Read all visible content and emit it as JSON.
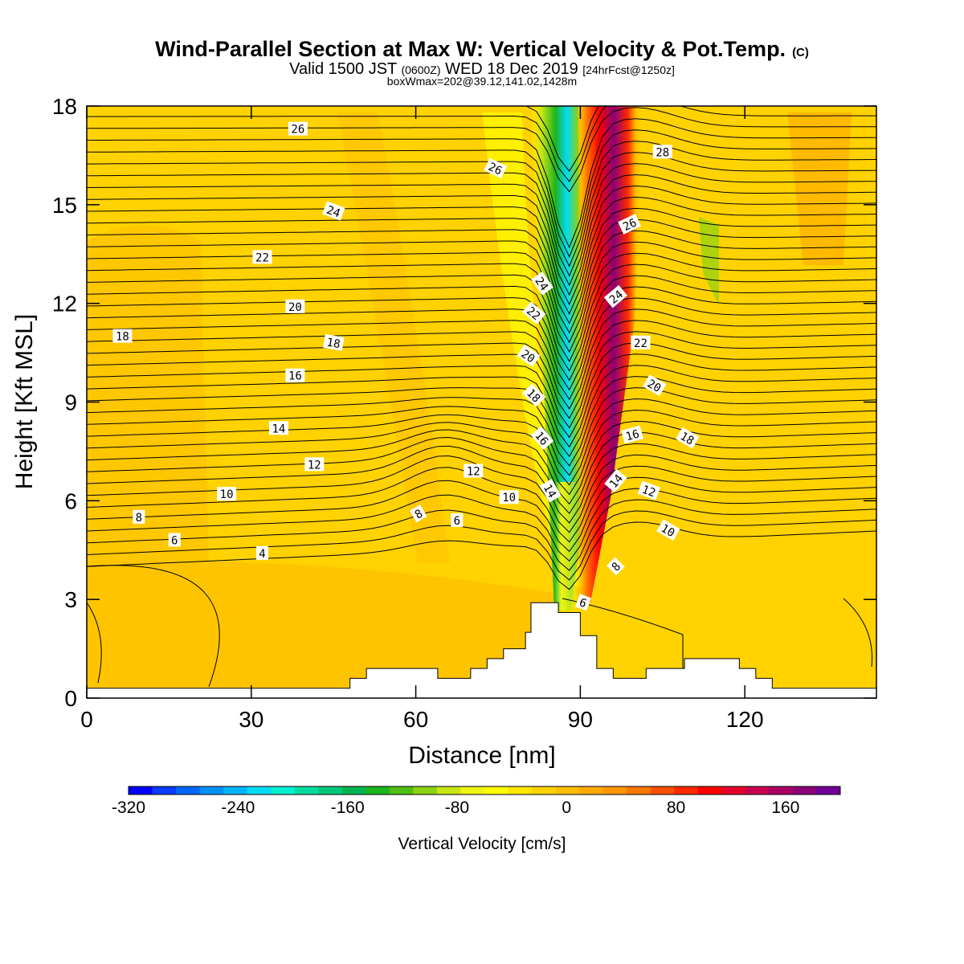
{
  "chart_data": {
    "type": "heatmap",
    "title": "Wind-Parallel Section at Max W: Vertical Velocity & Pot.Temp.",
    "title_mark": "(C)",
    "subtitle_parts": [
      "Valid 1500 JST ",
      "(0600Z)",
      " WED 18 Dec 2019 ",
      "[24hrFcst@1250z]"
    ],
    "subtitle2": "boxWmax=202@39.12,141.02,1428m",
    "xlabel": "Distance [nm]",
    "ylabel": "Height [Kft MSL]",
    "xlim": [
      0,
      144
    ],
    "ylim": [
      0,
      18
    ],
    "xticks": [
      0,
      30,
      60,
      90,
      120
    ],
    "yticks": [
      0,
      3,
      6,
      9,
      12,
      15,
      18
    ],
    "grid": false,
    "colorbar": {
      "label": "Vertical Velocity [cm/s]",
      "min": -320,
      "max": 200,
      "step": 20,
      "ticks": [
        "-320",
        "-240",
        "-160",
        "-80",
        "0",
        "80",
        "160"
      ],
      "tick_values": [
        -320,
        -240,
        -160,
        -80,
        0,
        80,
        160
      ],
      "colors": [
        "#0000ff",
        "#0a3cff",
        "#0066ff",
        "#0090ff",
        "#00b4ff",
        "#00dcf5",
        "#00f0d2",
        "#00dca0",
        "#00c878",
        "#00b450",
        "#1eb41e",
        "#50be14",
        "#8cd214",
        "#c8e614",
        "#f0f514",
        "#ffff00",
        "#ffe600",
        "#ffd200",
        "#ffbe00",
        "#ffaa00",
        "#ff9600",
        "#ff7800",
        "#ff5000",
        "#ff2800",
        "#ff0000",
        "#e6002d",
        "#c80050",
        "#aa0064",
        "#8c0078",
        "#6e0096"
      ]
    },
    "contour_labels": [
      {
        "text": "26",
        "x": 38.5,
        "y": 17.3,
        "angle": 0
      },
      {
        "text": "24",
        "x": 45.0,
        "y": 14.8,
        "angle": 20
      },
      {
        "text": "22",
        "x": 32.0,
        "y": 13.4,
        "angle": 0
      },
      {
        "text": "20",
        "x": 38.0,
        "y": 11.9,
        "angle": 0
      },
      {
        "text": "18",
        "x": 6.5,
        "y": 11.0,
        "angle": 0
      },
      {
        "text": "18",
        "x": 45.0,
        "y": 10.8,
        "angle": 10
      },
      {
        "text": "16",
        "x": 38.0,
        "y": 9.8,
        "angle": 0
      },
      {
        "text": "14",
        "x": 35.0,
        "y": 8.2,
        "angle": 0
      },
      {
        "text": "12",
        "x": 41.5,
        "y": 7.1,
        "angle": 0
      },
      {
        "text": "10",
        "x": 25.5,
        "y": 6.2,
        "angle": 0
      },
      {
        "text": "8",
        "x": 9.5,
        "y": 5.5,
        "angle": 0
      },
      {
        "text": "6",
        "x": 16.0,
        "y": 4.8,
        "angle": 0
      },
      {
        "text": "4",
        "x": 32.0,
        "y": 4.4,
        "angle": 0
      },
      {
        "text": "12",
        "x": 70.5,
        "y": 6.9,
        "angle": 0
      },
      {
        "text": "10",
        "x": 77.0,
        "y": 6.1,
        "angle": 0
      },
      {
        "text": "8",
        "x": 60.5,
        "y": 5.6,
        "angle": -30
      },
      {
        "text": "6",
        "x": 67.5,
        "y": 5.4,
        "angle": 0
      },
      {
        "text": "26",
        "x": 74.5,
        "y": 16.1,
        "angle": 25
      },
      {
        "text": "24",
        "x": 83.0,
        "y": 12.6,
        "angle": 55
      },
      {
        "text": "22",
        "x": 81.5,
        "y": 11.7,
        "angle": 40
      },
      {
        "text": "20",
        "x": 80.5,
        "y": 10.4,
        "angle": 35
      },
      {
        "text": "18",
        "x": 81.5,
        "y": 9.2,
        "angle": 45
      },
      {
        "text": "16",
        "x": 83.0,
        "y": 7.9,
        "angle": 50
      },
      {
        "text": "14",
        "x": 84.5,
        "y": 6.3,
        "angle": 60
      },
      {
        "text": "6",
        "x": 90.5,
        "y": 2.9,
        "angle": 20
      },
      {
        "text": "28",
        "x": 105.0,
        "y": 16.6,
        "angle": 0
      },
      {
        "text": "26",
        "x": 99.0,
        "y": 14.4,
        "angle": -25
      },
      {
        "text": "24",
        "x": 96.5,
        "y": 12.2,
        "angle": -40
      },
      {
        "text": "22",
        "x": 101.0,
        "y": 10.8,
        "angle": 0
      },
      {
        "text": "20",
        "x": 103.5,
        "y": 9.5,
        "angle": 30
      },
      {
        "text": "18",
        "x": 109.5,
        "y": 7.9,
        "angle": 30
      },
      {
        "text": "16",
        "x": 99.5,
        "y": 8.0,
        "angle": -15
      },
      {
        "text": "14",
        "x": 96.5,
        "y": 6.6,
        "angle": -50
      },
      {
        "text": "12",
        "x": 102.5,
        "y": 6.3,
        "angle": 20
      },
      {
        "text": "10",
        "x": 106.0,
        "y": 5.1,
        "angle": 30
      },
      {
        "text": "8",
        "x": 96.5,
        "y": 4.0,
        "angle": -45
      }
    ],
    "terrain": [
      [
        0,
        0.3
      ],
      [
        48,
        0.3
      ],
      [
        48,
        0.6
      ],
      [
        51,
        0.6
      ],
      [
        51,
        0.9
      ],
      [
        64,
        0.9
      ],
      [
        64,
        0.6
      ],
      [
        70,
        0.6
      ],
      [
        70,
        0.9
      ],
      [
        73,
        0.9
      ],
      [
        73,
        1.2
      ],
      [
        76,
        1.2
      ],
      [
        76,
        1.5
      ],
      [
        80,
        1.5
      ],
      [
        80,
        2.0
      ],
      [
        81,
        2.0
      ],
      [
        81,
        2.9
      ],
      [
        86,
        2.9
      ],
      [
        86,
        2.6
      ],
      [
        90,
        2.6
      ],
      [
        90,
        1.9
      ],
      [
        93,
        1.9
      ],
      [
        93,
        0.9
      ],
      [
        96,
        0.9
      ],
      [
        96,
        0.6
      ],
      [
        102,
        0.6
      ],
      [
        102,
        0.9
      ],
      [
        109,
        0.9
      ],
      [
        109,
        1.2
      ],
      [
        119,
        1.2
      ],
      [
        119,
        0.9
      ],
      [
        122,
        0.9
      ],
      [
        122,
        0.6
      ],
      [
        125,
        0.6
      ],
      [
        125,
        0.3
      ],
      [
        144,
        0.3
      ]
    ]
  }
}
